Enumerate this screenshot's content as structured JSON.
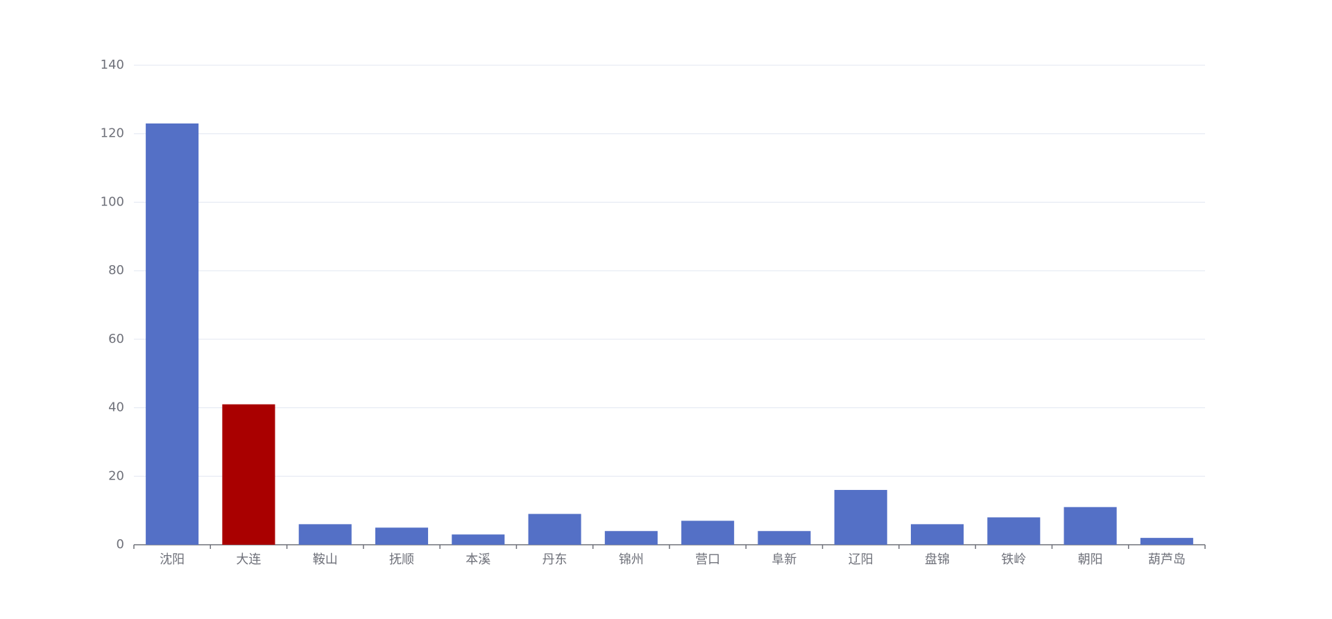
{
  "chart_data": {
    "type": "bar",
    "categories": [
      "沈阳",
      "大连",
      "鞍山",
      "抚顺",
      "本溪",
      "丹东",
      "锦州",
      "营口",
      "阜新",
      "辽阳",
      "盘锦",
      "铁岭",
      "朝阳",
      "葫芦岛"
    ],
    "values": [
      123,
      41,
      6,
      5,
      3,
      9,
      4,
      7,
      4,
      16,
      6,
      8,
      11,
      2
    ],
    "colors": [
      "#5470c6",
      "#a90000",
      "#5470c6",
      "#5470c6",
      "#5470c6",
      "#5470c6",
      "#5470c6",
      "#5470c6",
      "#5470c6",
      "#5470c6",
      "#5470c6",
      "#5470c6",
      "#5470c6",
      "#5470c6"
    ],
    "ylim": [
      0,
      140
    ],
    "yticks": [
      0,
      20,
      40,
      60,
      80,
      100,
      120,
      140
    ],
    "grid": true
  }
}
